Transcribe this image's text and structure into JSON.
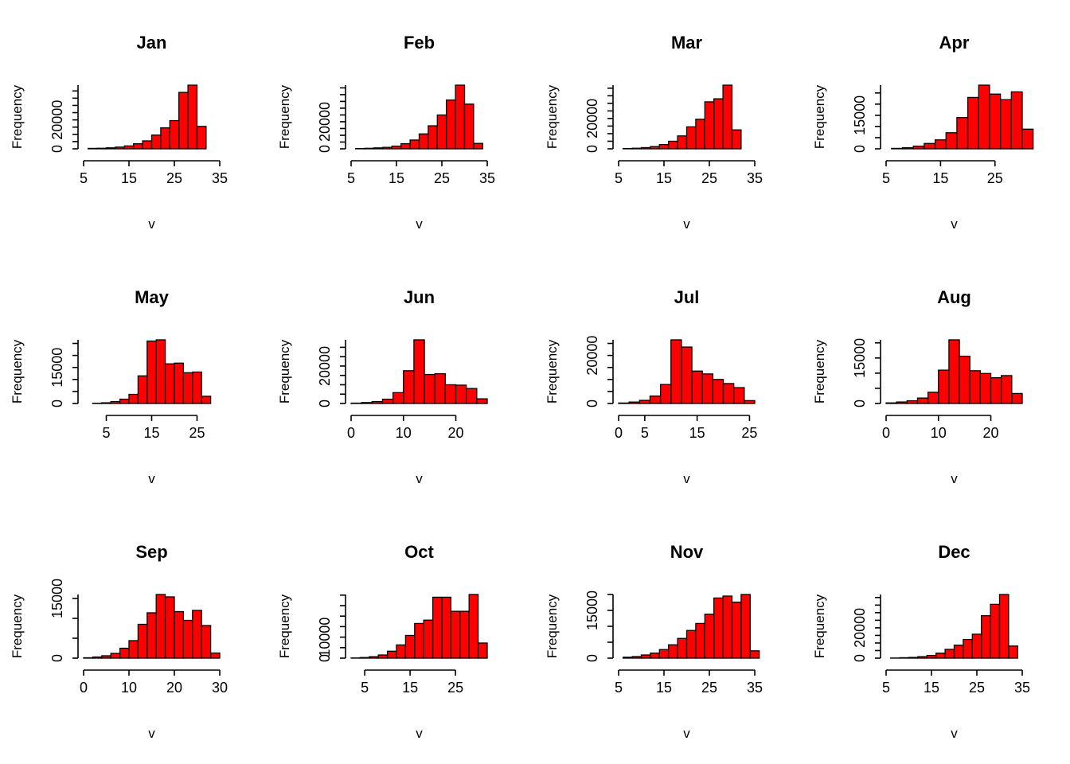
{
  "chart_data": [
    {
      "type": "bar",
      "title": "Jan",
      "xlabel": "v",
      "ylabel": "Frequency",
      "bar_color": "#ff0000",
      "bin_width": 2,
      "bin_start": 6,
      "values": [
        300,
        400,
        700,
        1200,
        2000,
        3500,
        5500,
        9500,
        14500,
        19500,
        39000,
        44000,
        15500
      ],
      "xlim": [
        5,
        35
      ],
      "ylim": [
        0,
        44000
      ],
      "xticks": [
        5,
        15,
        25,
        35
      ],
      "yticks": [
        0,
        20000
      ]
    },
    {
      "type": "bar",
      "title": "Feb",
      "xlabel": "v",
      "ylabel": "Frequency",
      "bar_color": "#ff0000",
      "bin_width": 2,
      "bin_start": 6,
      "values": [
        200,
        400,
        700,
        1100,
        2000,
        3800,
        6500,
        11000,
        17000,
        25000,
        36000,
        47000,
        33000,
        4000
      ],
      "xlim": [
        5,
        35
      ],
      "ylim": [
        0,
        47000
      ],
      "xticks": [
        5,
        15,
        25,
        35
      ],
      "yticks": [
        0,
        20000
      ]
    },
    {
      "type": "bar",
      "title": "Mar",
      "xlabel": "v",
      "ylabel": "Frequency",
      "bar_color": "#ff0000",
      "bin_width": 2,
      "bin_start": 6,
      "values": [
        200,
        400,
        800,
        1500,
        2800,
        5000,
        8500,
        14500,
        19500,
        31000,
        33000,
        42000,
        12500
      ],
      "xlim": [
        5,
        35
      ],
      "ylim": [
        0,
        42000
      ],
      "xticks": [
        5,
        15,
        25,
        35
      ],
      "yticks": [
        0,
        20000
      ]
    },
    {
      "type": "bar",
      "title": "Apr",
      "xlabel": "v",
      "ylabel": "Frequency",
      "bar_color": "#ff0000",
      "bin_width": 2,
      "bin_start": 6,
      "values": [
        200,
        500,
        1200,
        2400,
        4000,
        7200,
        14000,
        23000,
        28500,
        24500,
        22000,
        25500,
        8800
      ],
      "xlim": [
        5,
        30
      ],
      "ylim": [
        0,
        28500
      ],
      "xticks": [
        5,
        15,
        25
      ],
      "yticks": [
        0,
        15000
      ]
    },
    {
      "type": "bar",
      "title": "May",
      "xlabel": "v",
      "ylabel": "Frequency",
      "bar_color": "#ff0000",
      "bin_width": 2,
      "bin_start": 2,
      "values": [
        100,
        300,
        800,
        1800,
        3800,
        11500,
        26000,
        26500,
        16500,
        16800,
        12800,
        13100,
        3000
      ],
      "xlim": [
        0,
        30
      ],
      "ylim": [
        0,
        26500
      ],
      "xticks": [
        5,
        15,
        25
      ],
      "yticks": [
        0,
        15000
      ]
    },
    {
      "type": "bar",
      "title": "Jun",
      "xlabel": "v",
      "ylabel": "Frequency",
      "bar_color": "#ff0000",
      "bin_width": 2,
      "bin_start": 0,
      "values": [
        200,
        500,
        1000,
        2300,
        5800,
        17500,
        34000,
        15500,
        15900,
        10000,
        9800,
        8000,
        2500
      ],
      "xlim": [
        0,
        26
      ],
      "ylim": [
        0,
        34000
      ],
      "xticks": [
        0,
        10,
        20
      ],
      "yticks": [
        0,
        20000
      ]
    },
    {
      "type": "bar",
      "title": "Jul",
      "xlabel": "v",
      "ylabel": "Frequency",
      "bar_color": "#ff0000",
      "bin_width": 2,
      "bin_start": 0,
      "values": [
        200,
        600,
        1300,
        3100,
        7900,
        26500,
        23500,
        13500,
        12300,
        10000,
        8300,
        6600,
        1200
      ],
      "xlim": [
        0,
        26
      ],
      "ylim": [
        0,
        26500
      ],
      "xticks": [
        0,
        5,
        15,
        25
      ],
      "yticks": [
        0,
        20000
      ]
    },
    {
      "type": "bar",
      "title": "Aug",
      "xlabel": "v",
      "ylabel": "Frequency",
      "bar_color": "#ff0000",
      "bin_width": 2,
      "bin_start": 0,
      "values": [
        200,
        500,
        900,
        1800,
        3700,
        11000,
        21000,
        15600,
        10800,
        9900,
        8500,
        9200,
        3300
      ],
      "xlim": [
        0,
        26
      ],
      "ylim": [
        0,
        21000
      ],
      "xticks": [
        0,
        10,
        20
      ],
      "yticks": [
        0,
        15000
      ]
    },
    {
      "type": "bar",
      "title": "Sep",
      "xlabel": "v",
      "ylabel": "Frequency",
      "bar_color": "#ff0000",
      "bin_width": 2,
      "bin_start": 0,
      "values": [
        100,
        300,
        600,
        1200,
        2500,
        4400,
        8500,
        11400,
        16000,
        15400,
        11700,
        9500,
        12000,
        8200,
        1300
      ],
      "xlim": [
        0,
        30
      ],
      "ylim": [
        0,
        16000
      ],
      "xticks": [
        0,
        10,
        20,
        30
      ],
      "yticks": [
        0,
        15000
      ]
    },
    {
      "type": "bar",
      "title": "Oct",
      "xlabel": "v",
      "ylabel": "Frequency",
      "bar_color": "#ff0000",
      "bin_width": 2,
      "bin_start": 2,
      "values": [
        100,
        300,
        700,
        1500,
        3300,
        6300,
        10800,
        16500,
        18100,
        29000,
        29000,
        22300,
        22300,
        30300,
        7200
      ],
      "xlim": [
        2,
        32
      ],
      "ylim": [
        0,
        30300
      ],
      "xticks": [
        5,
        15,
        25
      ],
      "yticks": [
        0,
        10000
      ]
    },
    {
      "type": "bar",
      "title": "Nov",
      "xlabel": "v",
      "ylabel": "Frequency",
      "bar_color": "#ff0000",
      "bin_width": 2,
      "bin_start": 6,
      "values": [
        300,
        500,
        1000,
        1600,
        2700,
        4200,
        6200,
        8700,
        10900,
        13800,
        18900,
        19500,
        17600,
        20000,
        2300
      ],
      "xlim": [
        5,
        35
      ],
      "ylim": [
        0,
        20000
      ],
      "xticks": [
        5,
        15,
        25,
        35
      ],
      "yticks": [
        0,
        15000
      ]
    },
    {
      "type": "bar",
      "title": "Dec",
      "xlabel": "v",
      "ylabel": "Frequency",
      "bar_color": "#ff0000",
      "bin_width": 2,
      "bin_start": 6,
      "values": [
        100,
        300,
        500,
        1000,
        1800,
        3300,
        5800,
        8600,
        12300,
        15800,
        28000,
        35500,
        42000,
        8000
      ],
      "xlim": [
        5,
        35
      ],
      "ylim": [
        0,
        42000
      ],
      "xticks": [
        5,
        15,
        25,
        35
      ],
      "yticks": [
        0,
        20000
      ]
    }
  ]
}
